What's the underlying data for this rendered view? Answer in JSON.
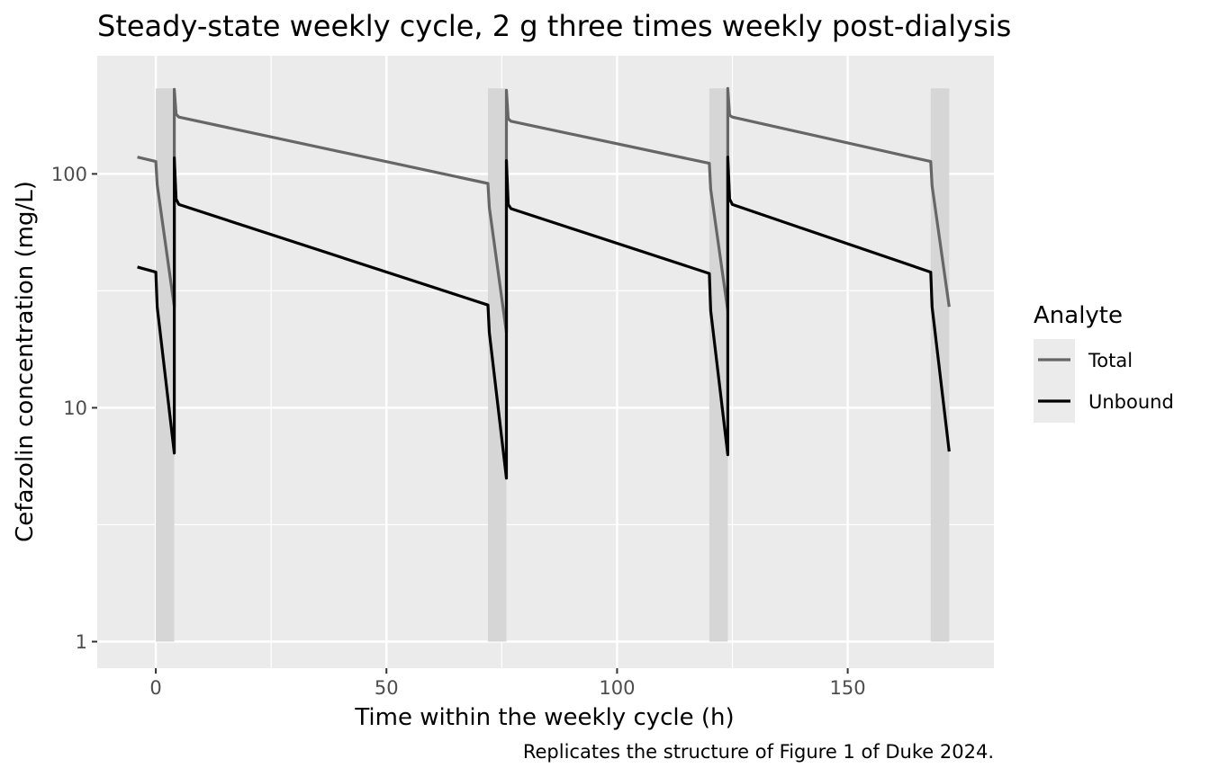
{
  "chart_data": {
    "type": "line",
    "title": "Steady-state weekly cycle, 2 g three times weekly post-dialysis",
    "xlabel": "Time within the weekly cycle (h)",
    "ylabel": "Cefazolin concentration (mg/L)",
    "caption": "Replicates the structure of Figure 1 of Duke 2024.",
    "xlim": [
      -12.7,
      181.7
    ],
    "ylim": [
      0.77,
      320
    ],
    "y_scale": "log10",
    "x_ticks": [
      0,
      50,
      100,
      150
    ],
    "x_tick_labels": [
      "0",
      "50",
      "100",
      "150"
    ],
    "y_ticks": [
      1,
      10,
      100
    ],
    "y_tick_labels": [
      "1",
      "10",
      "100"
    ],
    "grid": true,
    "legend": {
      "title": "Analyte",
      "position": "right",
      "entries": [
        "Total",
        "Unbound"
      ]
    },
    "shaded_intervals": [
      [
        0,
        4
      ],
      [
        72,
        76
      ],
      [
        120,
        124
      ],
      [
        168,
        172
      ]
    ],
    "series": [
      {
        "name": "Total",
        "color": "#666666",
        "x": [
          -4,
          0,
          0.3,
          4,
          4,
          4.4,
          5,
          72,
          72.3,
          76,
          76,
          76.4,
          77,
          120,
          120.3,
          124,
          124,
          124.4,
          125,
          168,
          168.3,
          172
        ],
        "y": [
          118,
          113,
          90,
          27,
          230,
          180,
          175,
          91,
          72,
          21,
          228,
          172,
          168,
          111,
          86,
          26,
          232,
          178,
          175,
          113,
          89,
          27
        ]
      },
      {
        "name": "Unbound",
        "color": "#000000",
        "x": [
          -4,
          0,
          0.3,
          4,
          4,
          4.4,
          5,
          72,
          72.3,
          76,
          76,
          76.4,
          77,
          120,
          120.3,
          124,
          124,
          124.4,
          125,
          168,
          168.3,
          172
        ],
        "y": [
          40,
          38,
          27,
          6.4,
          117,
          78,
          74,
          27.5,
          21,
          5,
          114,
          74,
          71,
          37.5,
          26,
          6.3,
          118,
          78,
          74,
          38,
          27,
          6.5
        ]
      }
    ]
  }
}
